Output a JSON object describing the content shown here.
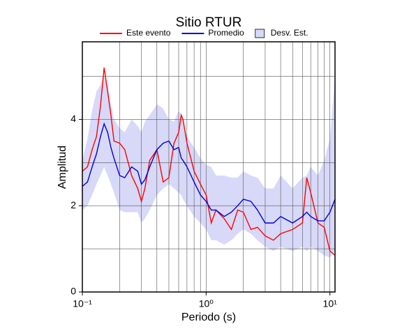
{
  "chart_data": {
    "type": "line",
    "title": "Sitio RTUR",
    "xlabel": "Periodo (s)",
    "ylabel": "Amplitud",
    "xscale": "log",
    "xlim": [
      0.1,
      11
    ],
    "ylim": [
      0,
      5.8
    ],
    "xticks": [
      {
        "value": 0.1,
        "label": "10⁻¹"
      },
      {
        "value": 1,
        "label": "10⁰"
      },
      {
        "value": 10,
        "label": "10¹"
      }
    ],
    "xminor": [
      0.2,
      0.3,
      0.4,
      0.5,
      0.6,
      0.7,
      0.8,
      0.9,
      2,
      3,
      4,
      5,
      6,
      7,
      8,
      9
    ],
    "yticks": [
      0,
      2,
      4
    ],
    "yminor": [
      1,
      3,
      5
    ],
    "grid": true,
    "x": [
      0.1,
      0.11,
      0.12,
      0.13,
      0.14,
      0.15,
      0.16,
      0.17,
      0.18,
      0.2,
      0.22,
      0.25,
      0.28,
      0.3,
      0.32,
      0.35,
      0.4,
      0.45,
      0.5,
      0.55,
      0.6,
      0.63,
      0.65,
      0.7,
      0.8,
      0.9,
      1.0,
      1.1,
      1.2,
      1.4,
      1.6,
      1.8,
      2.0,
      2.3,
      2.6,
      3.0,
      3.5,
      4.0,
      5.0,
      6.0,
      6.5,
      7.0,
      8.0,
      9.0,
      10.0,
      11.0
    ],
    "series": [
      {
        "name": "Este evento",
        "type": "line",
        "color": "#ff0000",
        "values": [
          2.8,
          2.9,
          3.3,
          3.6,
          4.3,
          5.2,
          4.65,
          4.1,
          3.5,
          3.45,
          3.3,
          2.7,
          2.4,
          2.1,
          2.4,
          3.05,
          3.3,
          2.55,
          2.65,
          3.45,
          3.7,
          4.1,
          4.0,
          3.45,
          2.8,
          2.5,
          2.25,
          1.6,
          1.9,
          1.7,
          1.45,
          1.9,
          1.85,
          1.45,
          1.5,
          1.3,
          1.2,
          1.35,
          1.45,
          1.6,
          2.65,
          2.3,
          1.6,
          1.5,
          0.95,
          0.85
        ]
      },
      {
        "name": "Promedio",
        "type": "line",
        "color": "#0000dd",
        "values": [
          2.45,
          2.55,
          2.9,
          3.2,
          3.6,
          3.9,
          3.7,
          3.35,
          3.1,
          2.7,
          2.65,
          2.9,
          2.8,
          2.5,
          2.6,
          2.9,
          3.3,
          3.45,
          3.5,
          3.3,
          3.35,
          3.1,
          3.05,
          2.9,
          2.55,
          2.25,
          2.1,
          1.9,
          1.9,
          1.75,
          1.85,
          2.0,
          2.15,
          2.1,
          1.9,
          1.6,
          1.6,
          1.75,
          1.6,
          1.75,
          1.85,
          1.75,
          1.65,
          1.65,
          1.85,
          2.15
        ]
      },
      {
        "name": "Desv. Est.",
        "type": "band",
        "color": "#d8d8f8",
        "upper": [
          3.05,
          3.55,
          4.2,
          4.65,
          4.8,
          5.0,
          4.8,
          4.35,
          4.0,
          3.8,
          3.7,
          4.0,
          3.85,
          3.7,
          3.95,
          4.1,
          4.35,
          4.25,
          4.0,
          3.95,
          4.2,
          4.1,
          3.95,
          3.6,
          3.35,
          3.1,
          2.95,
          2.9,
          2.7,
          2.7,
          2.65,
          2.65,
          2.8,
          2.7,
          2.65,
          2.4,
          2.4,
          2.7,
          2.4,
          2.65,
          2.7,
          2.9,
          2.7,
          3.05,
          3.55,
          5.0
        ],
        "lower": [
          1.9,
          2.0,
          2.25,
          2.5,
          2.7,
          2.9,
          2.7,
          2.5,
          2.3,
          1.9,
          1.85,
          1.85,
          1.85,
          1.6,
          1.7,
          1.9,
          2.25,
          2.4,
          2.5,
          2.4,
          2.3,
          2.25,
          2.15,
          2.0,
          1.75,
          1.6,
          1.45,
          1.2,
          1.2,
          1.1,
          1.2,
          1.35,
          1.45,
          1.35,
          1.2,
          1.05,
          0.95,
          1.05,
          0.95,
          1.05,
          0.95,
          1.05,
          0.95,
          0.85,
          0.8,
          0.95
        ]
      }
    ]
  }
}
